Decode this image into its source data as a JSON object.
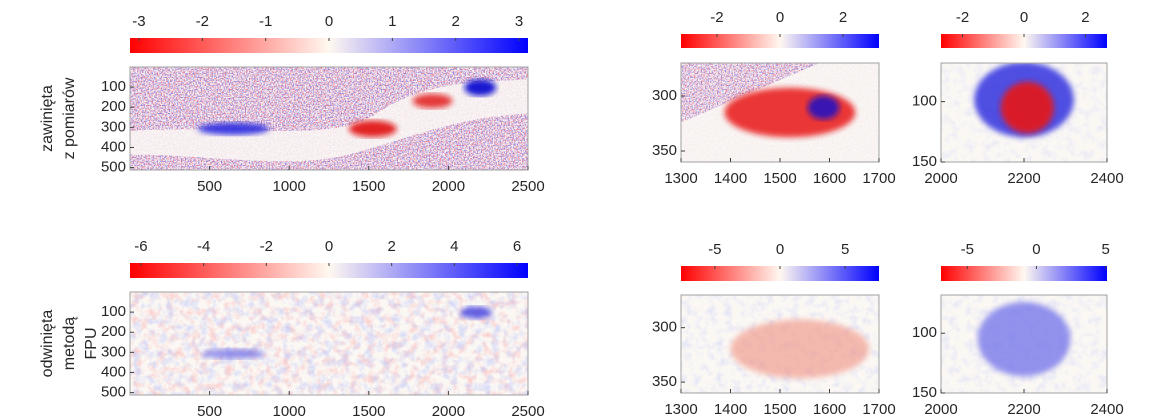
{
  "chart_data": [
    {
      "type": "heatmap",
      "ylabel": [
        "zawinięta",
        "z pomiarów"
      ],
      "clim": [
        -3.1416,
        3.1416
      ],
      "cticks": [
        -3,
        -2,
        -1,
        0,
        1,
        2,
        3
      ],
      "xlim": [
        0,
        2500
      ],
      "xticks": [
        500,
        1000,
        1500,
        2000,
        2500
      ],
      "ylim": [
        0,
        512
      ],
      "yticks": [
        100,
        200,
        300,
        400,
        500
      ]
    },
    {
      "type": "heatmap",
      "clim": [
        -3.1416,
        3.1416
      ],
      "cticks": [
        -2,
        0,
        2
      ],
      "xlim": [
        1300,
        1700
      ],
      "xticks": [
        1300,
        1400,
        1500,
        1600,
        1700
      ],
      "ylim": [
        270,
        360
      ],
      "yticks": [
        300,
        350
      ]
    },
    {
      "type": "heatmap",
      "clim": [
        -2.7,
        2.7
      ],
      "cticks": [
        -2,
        0,
        2
      ],
      "xlim": [
        2000,
        2400
      ],
      "xticks": [
        2000,
        2200,
        2400
      ],
      "ylim": [
        68,
        150
      ],
      "yticks": [
        100,
        150
      ]
    },
    {
      "type": "heatmap",
      "ylabel": [
        "odwinięta",
        "metodą",
        "FPU"
      ],
      "clim": [
        -6.35,
        6.35
      ],
      "cticks": [
        -6,
        -4,
        -2,
        0,
        2,
        4,
        6
      ],
      "xlim": [
        0,
        2500
      ],
      "xticks": [
        500,
        1000,
        1500,
        2000,
        2500
      ],
      "ylim": [
        0,
        512
      ],
      "yticks": [
        100,
        200,
        300,
        400,
        500
      ]
    },
    {
      "type": "heatmap",
      "clim": [
        -7.6,
        7.6
      ],
      "cticks": [
        -5,
        0,
        5
      ],
      "xlim": [
        1300,
        1700
      ],
      "xticks": [
        1300,
        1400,
        1500,
        1600,
        1700
      ],
      "ylim": [
        270,
        360
      ],
      "yticks": [
        300,
        350
      ]
    },
    {
      "type": "heatmap",
      "clim": [
        -6.9,
        5.1
      ],
      "cticks": [
        -5,
        0,
        5
      ],
      "xlim": [
        2000,
        2400
      ],
      "xticks": [
        2000,
        2200,
        2400
      ],
      "ylim": [
        68,
        150
      ],
      "yticks": [
        100,
        150
      ]
    }
  ]
}
